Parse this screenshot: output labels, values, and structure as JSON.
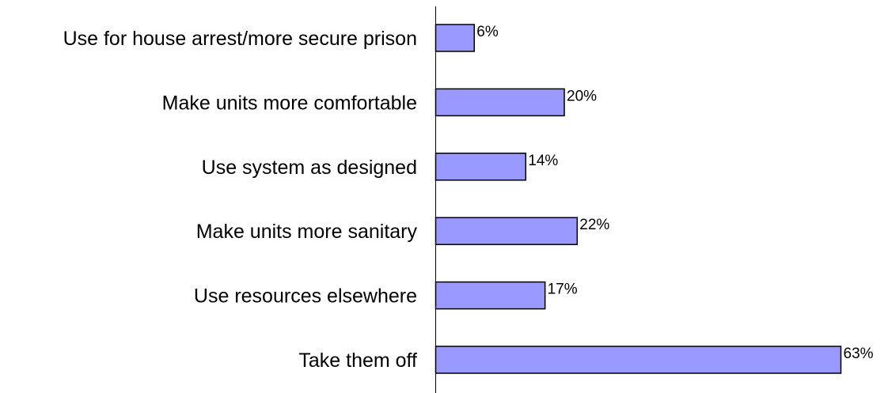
{
  "chart_data": {
    "type": "bar",
    "orientation": "horizontal",
    "categories": [
      "Use for house arrest/more secure prison",
      "Make units more comfortable",
      "Use system as designed",
      "Make units more sanitary",
      "Use resources elsewhere",
      "Take them off"
    ],
    "values": [
      6,
      20,
      14,
      22,
      17,
      63
    ],
    "value_labels": [
      "6%",
      "20%",
      "14%",
      "22%",
      "17%",
      "63%"
    ],
    "unit": "%",
    "xlim": [
      0,
      63
    ],
    "grid": false,
    "legend": "none",
    "colors": {
      "bar_fill": "#9999ff",
      "bar_stroke": "#000000",
      "axis": "#000000",
      "text": "#000000"
    }
  }
}
